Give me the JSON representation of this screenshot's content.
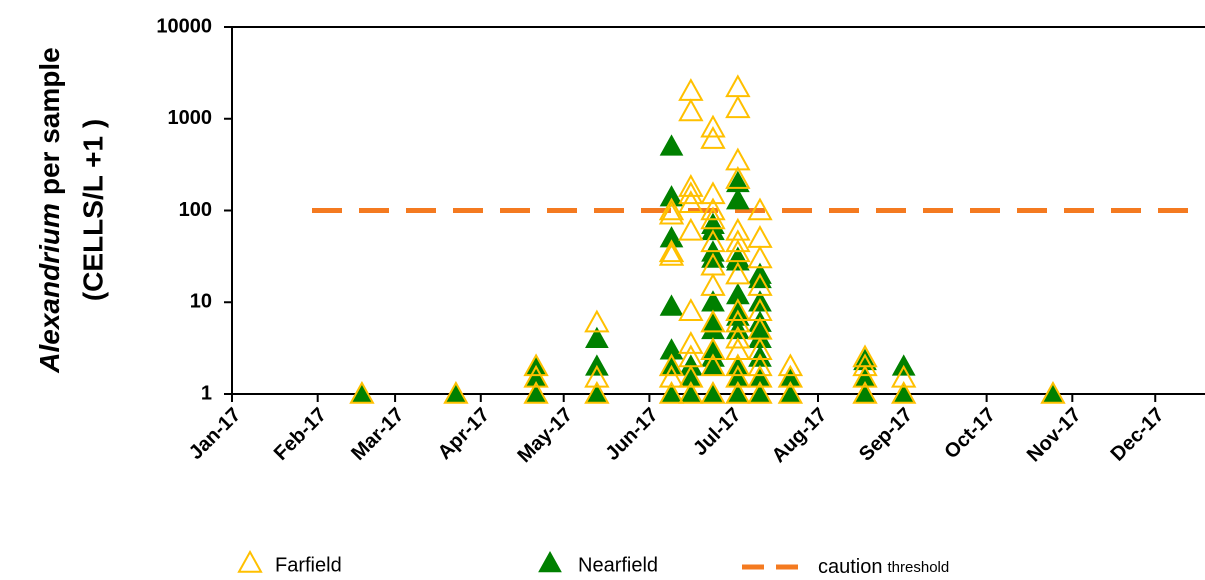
{
  "chart_data": {
    "type": "scatter",
    "y_label": {
      "italic": "Alexandrium",
      "rest": "per sample",
      "line2": "(CELLS/L +1 )"
    },
    "log_y": true,
    "ylim": [
      1,
      10000
    ],
    "yticks": [
      1,
      10,
      100,
      1000,
      10000
    ],
    "xlim": [
      0,
      352
    ],
    "xticks": [
      {
        "value": 0,
        "label": "Jan-17"
      },
      {
        "value": 31,
        "label": "Feb-17"
      },
      {
        "value": 59,
        "label": "Mar-17"
      },
      {
        "value": 90,
        "label": "Apr-17"
      },
      {
        "value": 120,
        "label": "May-17"
      },
      {
        "value": 151,
        "label": "Jun-17"
      },
      {
        "value": 181,
        "label": "Jul-17"
      },
      {
        "value": 212,
        "label": "Aug-17"
      },
      {
        "value": 243,
        "label": "Sep-17"
      },
      {
        "value": 273,
        "label": "Oct-17"
      },
      {
        "value": 304,
        "label": "Nov-17"
      },
      {
        "value": 334,
        "label": "Dec-17"
      }
    ],
    "series": [
      {
        "name": "Nearfield",
        "color": "#008000",
        "marker": "filled",
        "x": [
          47,
          81,
          110,
          110,
          110,
          132,
          132,
          132,
          159,
          159,
          159,
          159,
          159,
          159,
          159,
          166,
          166,
          166,
          174,
          174,
          174,
          174,
          174,
          174,
          174,
          174,
          174,
          174,
          174,
          183,
          183,
          183,
          183,
          183,
          183,
          183,
          183,
          183,
          183,
          183,
          191,
          191,
          191,
          191,
          191,
          191,
          191,
          191,
          191,
          202,
          202,
          229,
          229,
          229,
          243,
          243,
          297
        ],
        "values": [
          1,
          1,
          1,
          1.5,
          2,
          4,
          2,
          1,
          500,
          140,
          50,
          9,
          3,
          2,
          1,
          2,
          1.5,
          1,
          70,
          60,
          35,
          30,
          10,
          6,
          5,
          3,
          2.5,
          2,
          1,
          200,
          130,
          30,
          28,
          12,
          8,
          7,
          5,
          2,
          1.5,
          1,
          20,
          18,
          10,
          6,
          5,
          4,
          2.5,
          1.5,
          1,
          1.5,
          1,
          2.3,
          1.5,
          1,
          2,
          1,
          1
        ]
      },
      {
        "name": "Farfield",
        "color": "#ffc000",
        "marker": "open",
        "x": [
          47,
          81,
          110,
          110,
          110,
          132,
          132,
          132,
          159,
          159,
          159,
          159,
          159,
          159,
          159,
          166,
          166,
          166,
          166,
          166,
          166,
          166,
          166,
          166,
          166,
          166,
          174,
          174,
          174,
          174,
          174,
          174,
          174,
          174,
          174,
          174,
          174,
          174,
          183,
          183,
          183,
          183,
          183,
          183,
          183,
          183,
          183,
          183,
          183,
          183,
          183,
          183,
          183,
          191,
          191,
          191,
          191,
          191,
          191,
          191,
          191,
          191,
          191,
          202,
          202,
          202,
          229,
          229,
          229,
          229,
          243,
          243,
          297
        ],
        "values": [
          1,
          1,
          1,
          1.5,
          2,
          6,
          1.5,
          1,
          100,
          90,
          35,
          32,
          2,
          1.5,
          1,
          2000,
          1200,
          180,
          150,
          120,
          60,
          8,
          3.5,
          2.5,
          1.5,
          1,
          800,
          600,
          150,
          100,
          80,
          45,
          25,
          15,
          6,
          3,
          2,
          1,
          2200,
          1300,
          350,
          220,
          60,
          45,
          35,
          20,
          8,
          6,
          4,
          3,
          2,
          1.5,
          1,
          100,
          50,
          30,
          15,
          8,
          5,
          3,
          2,
          1.5,
          1,
          2,
          1.5,
          1,
          2.5,
          2,
          1.5,
          1,
          1.5,
          1,
          1
        ]
      }
    ],
    "threshold": {
      "value": 100,
      "color": "#f47a20",
      "name": "caution",
      "name_small": "threshold"
    },
    "legend": "bottom"
  }
}
